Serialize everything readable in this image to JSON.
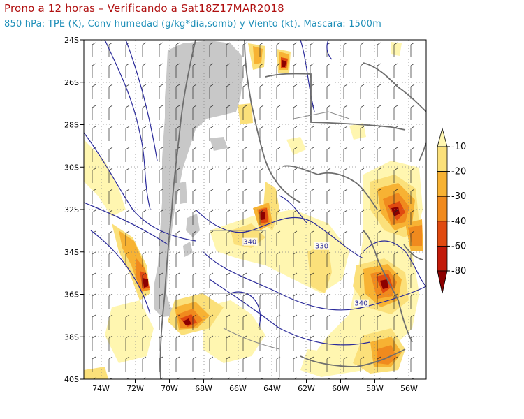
{
  "title": "Prono a 12 horas – Verificando a Sat18Z17MAR2018",
  "subtitle": "850 hPa: TPE (K), Conv humedad (g/kg*dia,somb) y Viento (kt). Mascara: 1500m",
  "axes": {
    "lat_ticks": [
      "24S",
      "26S",
      "28S",
      "30S",
      "32S",
      "34S",
      "36S",
      "38S",
      "40S"
    ],
    "lon_ticks": [
      "74W",
      "72W",
      "70W",
      "68W",
      "66W",
      "64W",
      "62W",
      "60W",
      "58W",
      "56W"
    ],
    "lat_range": [
      -40,
      -24
    ],
    "lon_range": [
      -75,
      -55
    ],
    "grid": "dotted"
  },
  "colorbar": {
    "levels": [
      "-10",
      "-20",
      "-30",
      "-40",
      "-60",
      "-80"
    ],
    "colors": [
      "#fff6b0",
      "#fbe07a",
      "#f7b233",
      "#f08a1e",
      "#e04a10",
      "#c21a0a",
      "#8c0000"
    ],
    "mask_color": "#c8c8c8"
  },
  "contour_labels": [
    {
      "text": "340",
      "lon": -65.3,
      "lat": -33.6
    },
    {
      "text": "330",
      "lon": -61.1,
      "lat": -33.8
    },
    {
      "text": "340",
      "lon": -58.8,
      "lat": -36.5
    }
  ],
  "colors": {
    "contour": "#2a2a9a",
    "border": "#6e6e6e",
    "title": "#b01010",
    "subtitle": "#1f8fb8"
  }
}
